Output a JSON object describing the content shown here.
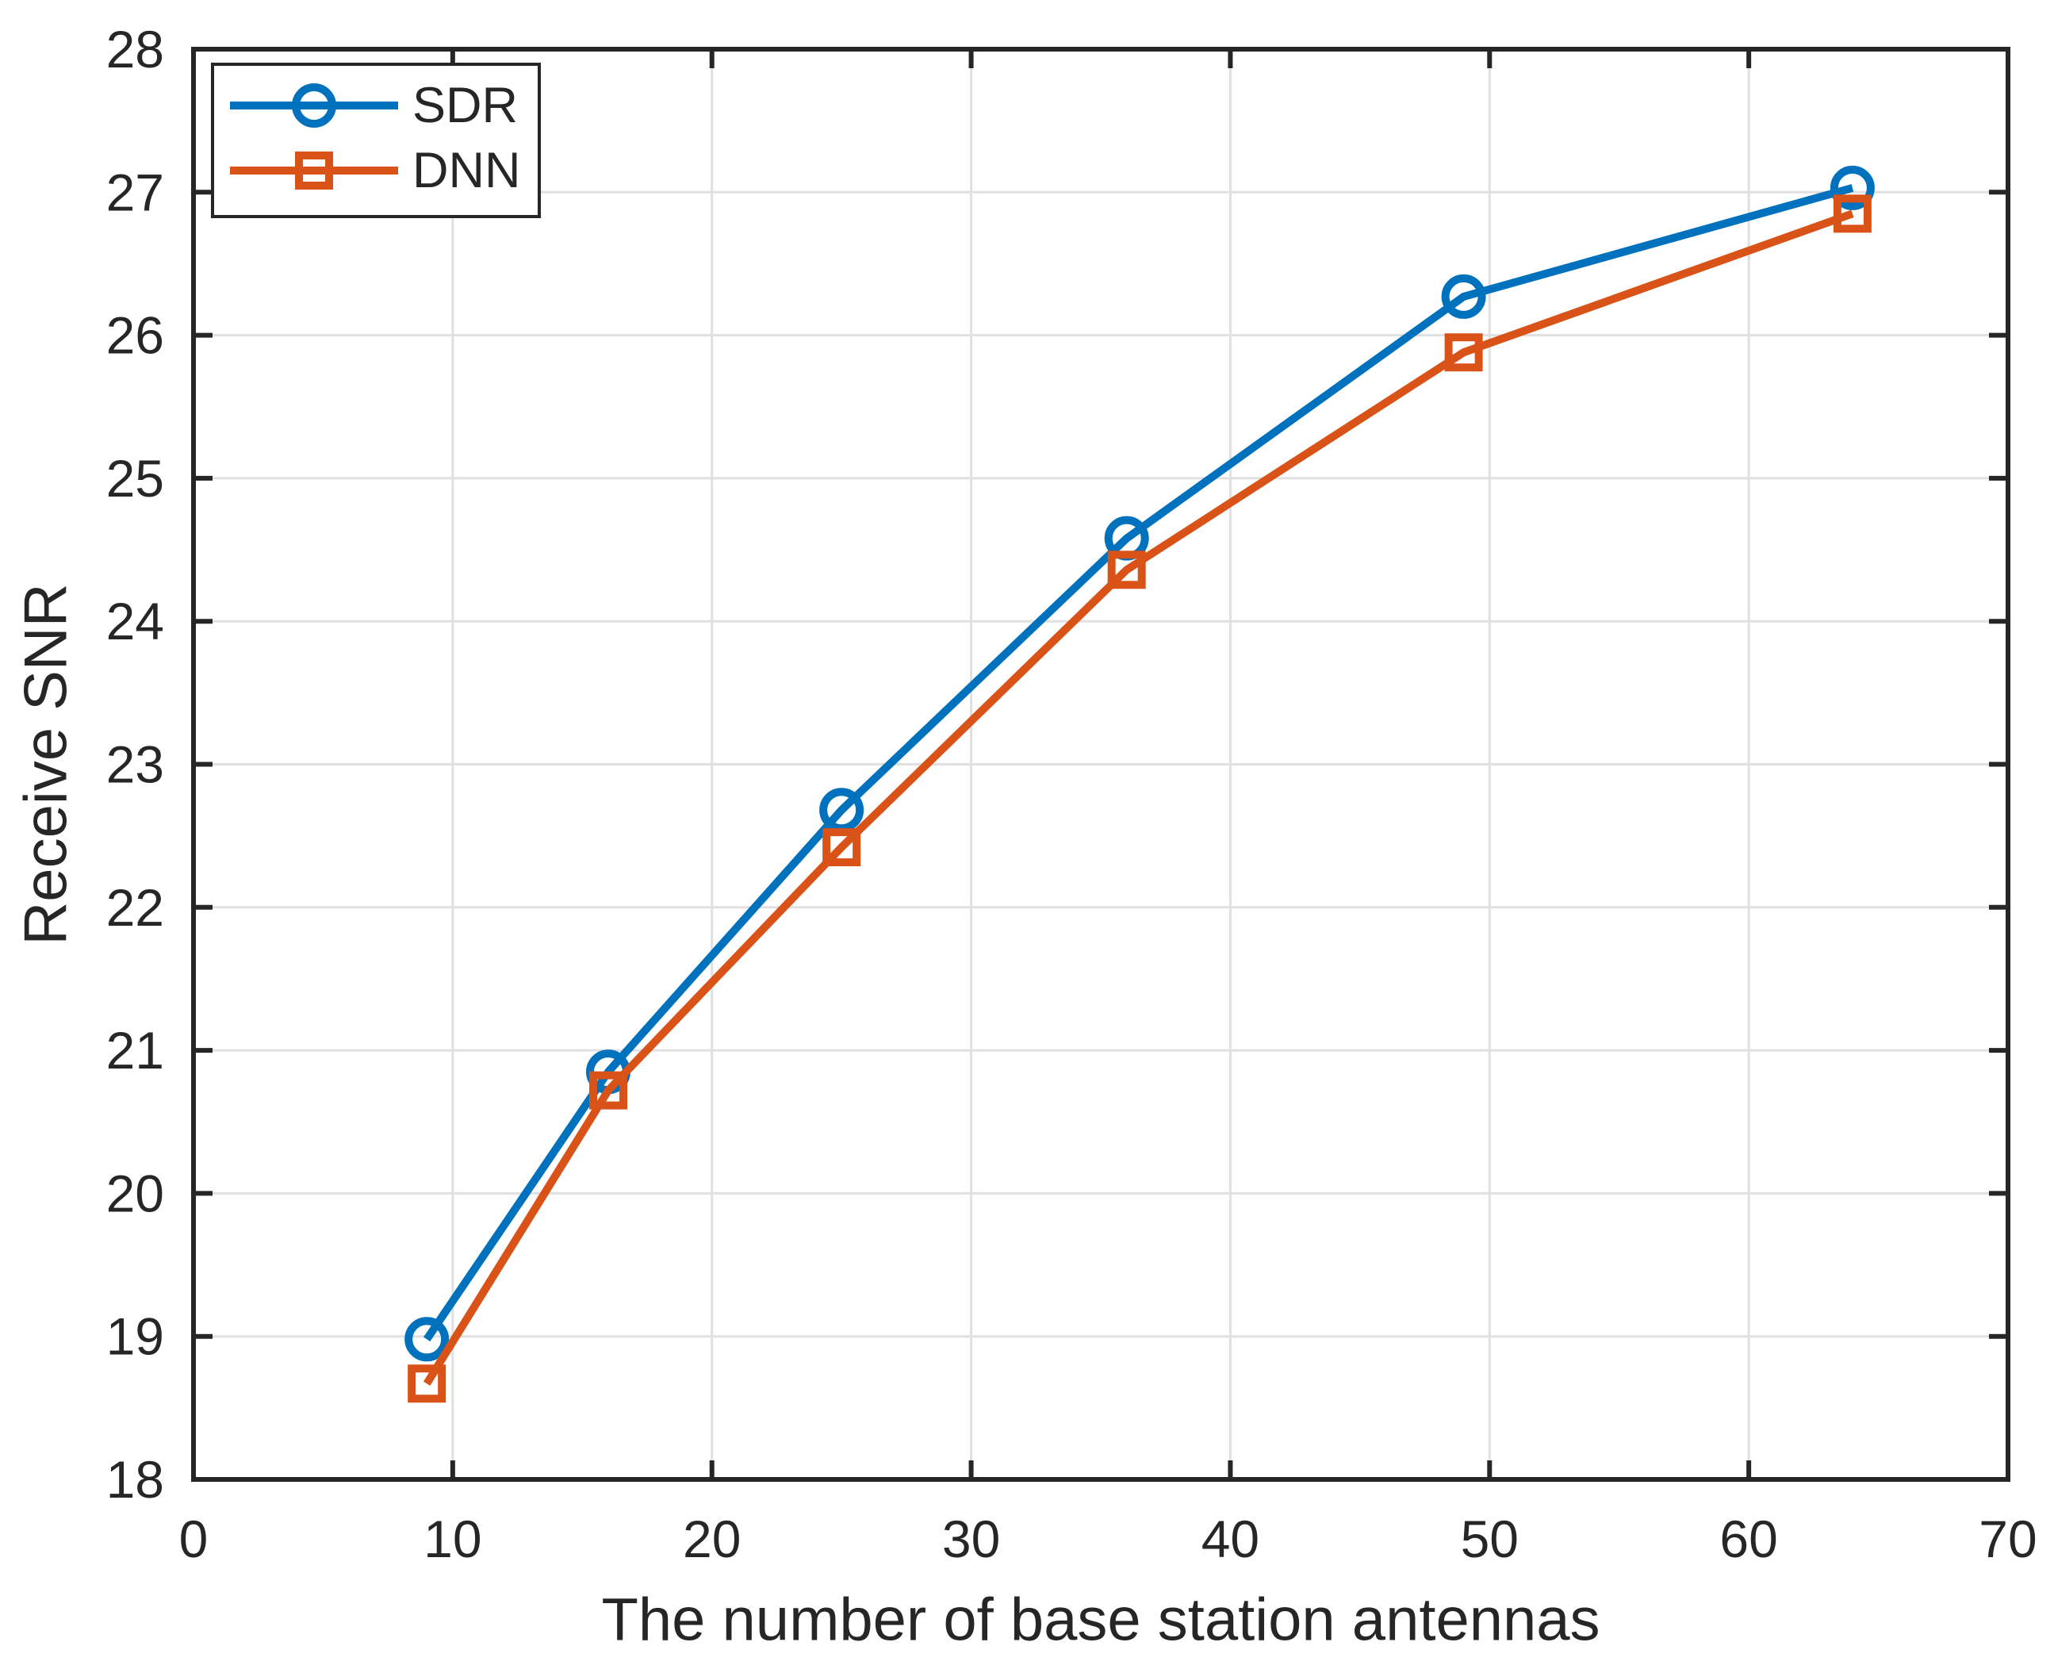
{
  "chart_data": {
    "type": "line",
    "title": "",
    "xlabel": "The number of base station antennas",
    "ylabel": "Receive SNR",
    "x": [
      9,
      16,
      25,
      36,
      49,
      64
    ],
    "series": [
      {
        "name": "SDR",
        "color": "#0072BD",
        "marker": "circle",
        "values": [
          18.98,
          20.85,
          22.68,
          24.58,
          26.27,
          27.03
        ]
      },
      {
        "name": "DNN",
        "color": "#D95319",
        "marker": "square",
        "values": [
          18.67,
          20.72,
          22.42,
          24.36,
          25.88,
          26.85
        ]
      }
    ],
    "xlim": [
      0,
      70
    ],
    "ylim": [
      18,
      28
    ],
    "xticks": [
      0,
      10,
      20,
      30,
      40,
      50,
      60,
      70
    ],
    "yticks": [
      18,
      19,
      20,
      21,
      22,
      23,
      24,
      25,
      26,
      27,
      28
    ],
    "grid": true,
    "legend_position": "top-left",
    "colors": {
      "axis": "#262626",
      "grid": "#e0e0e0",
      "background": "#ffffff",
      "sdr": "#0072BD",
      "dnn": "#D95319"
    }
  }
}
